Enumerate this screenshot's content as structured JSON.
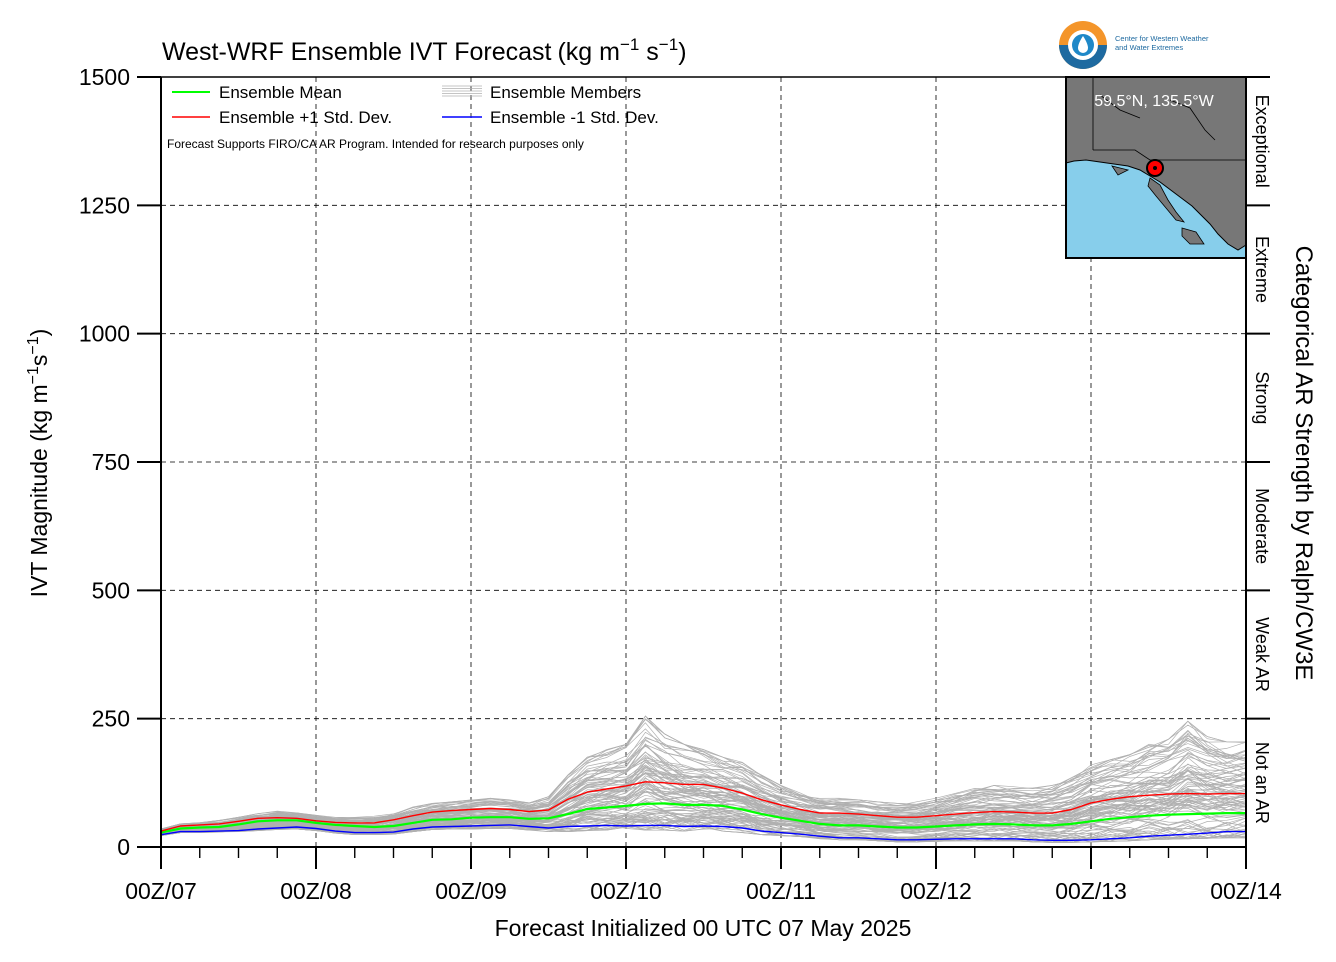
{
  "chart_data": {
    "type": "line",
    "title": "West-WRF Ensemble IVT Forecast",
    "title_units": {
      "base": "(kg m",
      "exp1": "−1",
      "mid": " s",
      "exp2": "−1",
      "end": ")"
    },
    "xlabel": "Forecast Initialized 00 UTC 07 May 2025",
    "ylabel": {
      "base": "IVT Magnitude (kg m",
      "exp1": "−1",
      "mid": "s",
      "exp2": "−1",
      "end": ")"
    },
    "right_label": "Categorical AR Strength by Ralph/CW3E",
    "note": "Forecast Supports FIRO/CA AR Program. Intended for research purposes only",
    "x_ticks": [
      "00Z/07",
      "00Z/08",
      "00Z/09",
      "00Z/10",
      "00Z/11",
      "00Z/12",
      "00Z/13",
      "00Z/14"
    ],
    "y_ticks": [
      "0",
      "250",
      "500",
      "750",
      "1000",
      "1250",
      "1500"
    ],
    "ylim": [
      0,
      1500
    ],
    "xlim_days": [
      0,
      7
    ],
    "grid": true,
    "categories": [
      {
        "label": "Not an AR",
        "from": 0,
        "to": 250
      },
      {
        "label": "Weak AR",
        "from": 250,
        "to": 500
      },
      {
        "label": "Moderate",
        "from": 500,
        "to": 750
      },
      {
        "label": "Strong",
        "from": 750,
        "to": 1000
      },
      {
        "label": "Extreme",
        "from": 1000,
        "to": 1250
      },
      {
        "label": "Exceptional",
        "from": 1250,
        "to": 1500
      }
    ],
    "legend": {
      "placement": "top-left",
      "items": [
        {
          "label": "Ensemble Mean",
          "color": "#00ff00"
        },
        {
          "label": "Ensemble +1 Std. Dev.",
          "color": "#ff0000"
        },
        {
          "label": "Ensemble Members",
          "color": "#b0b0b0"
        },
        {
          "label": "Ensemble -1 Std. Dev.",
          "color": "#0000ff"
        }
      ]
    },
    "x": [
      0,
      0.125,
      0.25,
      0.375,
      0.5,
      0.625,
      0.75,
      0.875,
      1.0,
      1.125,
      1.25,
      1.375,
      1.5,
      1.625,
      1.75,
      1.875,
      2.0,
      2.125,
      2.25,
      2.375,
      2.5,
      2.625,
      2.75,
      2.875,
      3.0,
      3.125,
      3.25,
      3.375,
      3.5,
      3.625,
      3.75,
      3.875,
      4.0,
      4.125,
      4.25,
      4.375,
      4.5,
      4.625,
      4.75,
      4.875,
      5.0,
      5.125,
      5.25,
      5.375,
      5.5,
      5.625,
      5.75,
      5.875,
      6.0,
      6.125,
      6.25,
      6.375,
      6.5,
      6.625,
      6.75,
      6.875,
      7.0
    ],
    "series": [
      {
        "name": "Ensemble Mean",
        "color": "#00ff00",
        "width": 2.2,
        "values": [
          28,
          36,
          38,
          39,
          44,
          50,
          52,
          52,
          47,
          43,
          41,
          39,
          41,
          47,
          53,
          54,
          57,
          58,
          58,
          55,
          56,
          64,
          74,
          77,
          80,
          84,
          85,
          82,
          82,
          80,
          73,
          64,
          57,
          51,
          45,
          42,
          42,
          40,
          38,
          38,
          40,
          42,
          44,
          45,
          44,
          42,
          42,
          45,
          50,
          55,
          58,
          61,
          63,
          64,
          65,
          66,
          66
        ]
      },
      {
        "name": "Ensemble +1 Std. Dev.",
        "color": "#ff0000",
        "width": 1.4,
        "values": [
          31,
          41,
          43,
          45,
          50,
          56,
          57,
          56,
          51,
          48,
          47,
          47,
          53,
          61,
          68,
          71,
          73,
          75,
          73,
          69,
          72,
          93,
          107,
          113,
          119,
          127,
          125,
          122,
          122,
          115,
          105,
          92,
          82,
          73,
          66,
          66,
          64,
          61,
          58,
          58,
          61,
          64,
          67,
          69,
          68,
          66,
          66,
          73,
          86,
          93,
          98,
          101,
          103,
          104,
          103,
          104,
          104
        ]
      },
      {
        "name": "Ensemble -1 Std. Dev.",
        "color": "#0000ff",
        "width": 1.4,
        "values": [
          24,
          30,
          30,
          31,
          32,
          35,
          37,
          39,
          36,
          31,
          28,
          28,
          29,
          35,
          39,
          40,
          41,
          42,
          43,
          40,
          37,
          40,
          41,
          42,
          41,
          42,
          42,
          40,
          41,
          40,
          37,
          31,
          28,
          25,
          21,
          18,
          18,
          16,
          14,
          14,
          15,
          16,
          16,
          16,
          16,
          14,
          13,
          13,
          14,
          16,
          18,
          21,
          23,
          25,
          27,
          30,
          30
        ]
      }
    ],
    "members": {
      "count": 100,
      "color": "#b0b0b0",
      "band_min": [
        22,
        28,
        28,
        29,
        30,
        32,
        34,
        35,
        32,
        27,
        24,
        24,
        25,
        30,
        34,
        35,
        35,
        36,
        36,
        33,
        30,
        30,
        32,
        33,
        32,
        33,
        33,
        31,
        32,
        31,
        28,
        24,
        22,
        20,
        16,
        14,
        14,
        12,
        10,
        10,
        11,
        12,
        12,
        12,
        12,
        10,
        9,
        9,
        10,
        11,
        12,
        14,
        15,
        16,
        17,
        18,
        18
      ],
      "band_max": [
        35,
        45,
        48,
        52,
        58,
        65,
        70,
        68,
        62,
        58,
        58,
        60,
        66,
        78,
        85,
        88,
        92,
        95,
        92,
        86,
        98,
        140,
        175,
        190,
        200,
        255,
        220,
        200,
        190,
        175,
        165,
        140,
        120,
        105,
        95,
        95,
        92,
        88,
        85,
        88,
        95,
        105,
        115,
        120,
        118,
        115,
        120,
        135,
        160,
        170,
        180,
        200,
        210,
        245,
        215,
        205,
        205
      ]
    }
  },
  "inset_map": {
    "label": "59.5°N, 135.5°W",
    "land_color": "#777777",
    "ocean_color": "#87ceeb",
    "marker_color": "#ff0000"
  },
  "logo": {
    "name": "CW3E logo",
    "text_line1": "Center for Western Weather",
    "text_line2": "and Water Extremes"
  }
}
